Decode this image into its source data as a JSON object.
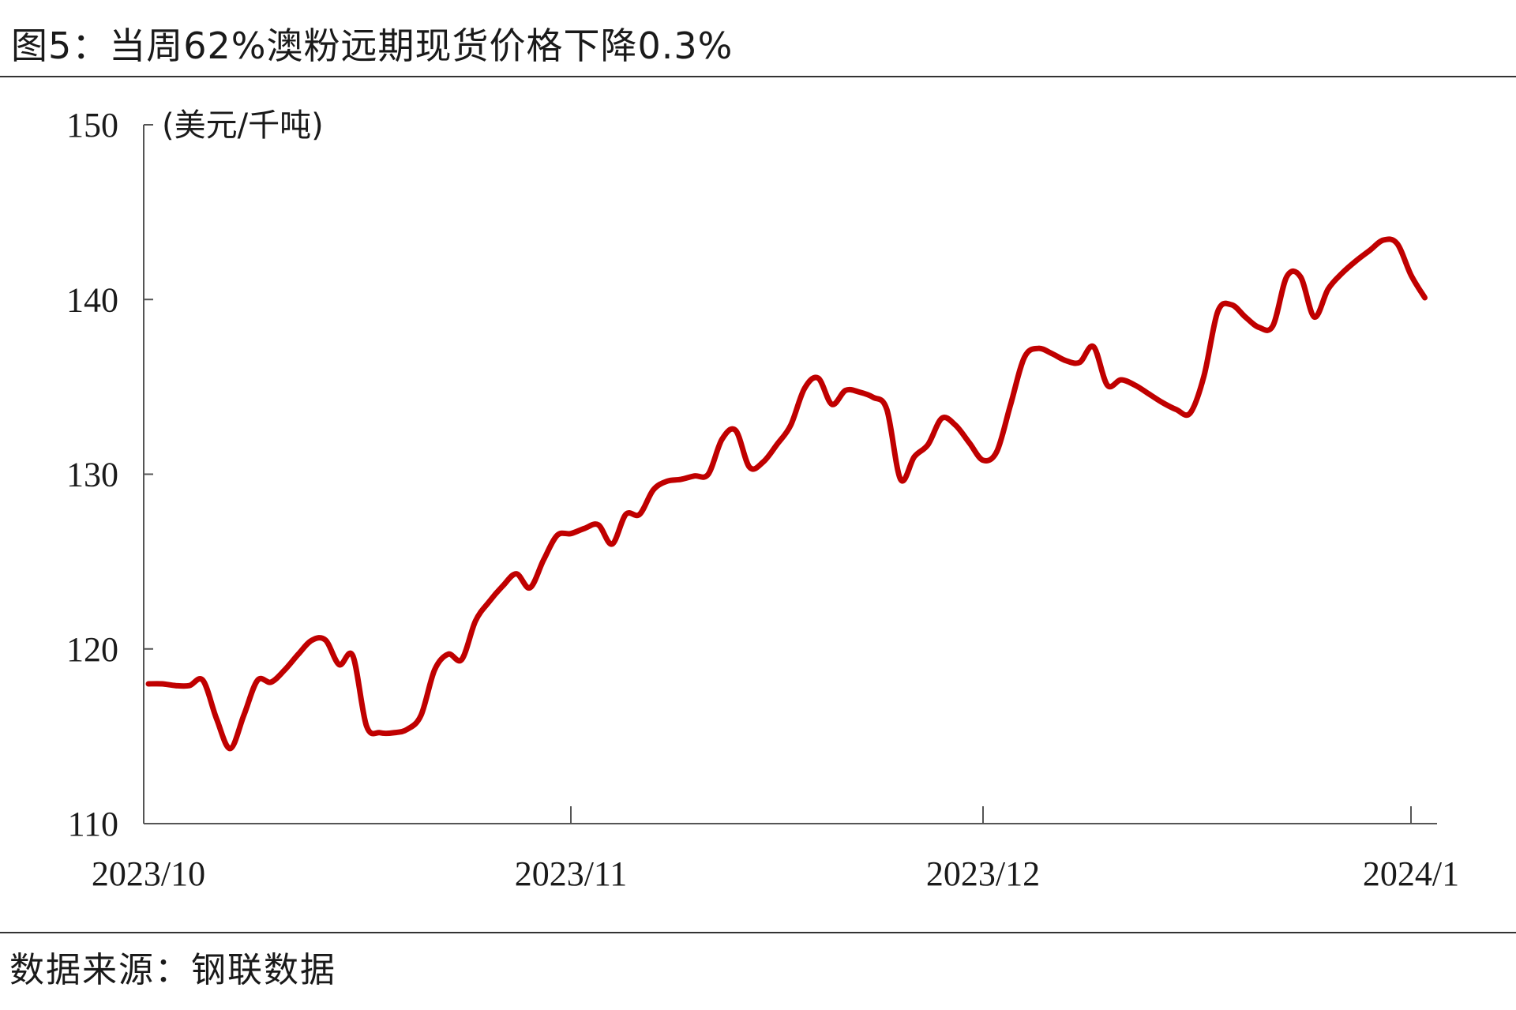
{
  "title": "图5：当周62%澳粉远期现货价格下降0.3%",
  "source": "数据来源：钢联数据",
  "chart_data": {
    "type": "line",
    "unit_label": "(美元/千吨)",
    "ylim": [
      110,
      150
    ],
    "yticks": [
      110,
      120,
      130,
      140,
      150
    ],
    "xlim": [
      "2023-10-01",
      "2024-01-02"
    ],
    "xticks": [
      {
        "date": "2023-10-01",
        "label": "2023/10"
      },
      {
        "date": "2023-11-01",
        "label": "2023/11"
      },
      {
        "date": "2023-12-01",
        "label": "2023/12"
      },
      {
        "date": "2024-01-01",
        "label": "2024/1"
      }
    ],
    "grid": false,
    "line_color": "#c00000",
    "series": [
      {
        "points": [
          [
            "2023-10-01",
            118.0
          ],
          [
            "2023-10-02",
            118.0
          ],
          [
            "2023-10-03",
            117.9
          ],
          [
            "2023-10-04",
            117.9
          ],
          [
            "2023-10-05",
            118.2
          ],
          [
            "2023-10-06",
            116.0
          ],
          [
            "2023-10-07",
            114.3
          ],
          [
            "2023-10-08",
            116.2
          ],
          [
            "2023-10-09",
            118.2
          ],
          [
            "2023-10-10",
            118.1
          ],
          [
            "2023-10-11",
            118.8
          ],
          [
            "2023-10-12",
            119.7
          ],
          [
            "2023-10-13",
            120.5
          ],
          [
            "2023-10-14",
            120.5
          ],
          [
            "2023-10-15",
            119.1
          ],
          [
            "2023-10-16",
            119.6
          ],
          [
            "2023-10-17",
            115.6
          ],
          [
            "2023-10-18",
            115.2
          ],
          [
            "2023-10-19",
            115.2
          ],
          [
            "2023-10-20",
            115.4
          ],
          [
            "2023-10-21",
            116.2
          ],
          [
            "2023-10-22",
            118.8
          ],
          [
            "2023-10-23",
            119.7
          ],
          [
            "2023-10-24",
            119.4
          ],
          [
            "2023-10-25",
            121.6
          ],
          [
            "2023-10-26",
            122.7
          ],
          [
            "2023-10-27",
            123.6
          ],
          [
            "2023-10-28",
            124.3
          ],
          [
            "2023-10-29",
            123.5
          ],
          [
            "2023-10-30",
            125.1
          ],
          [
            "2023-10-31",
            126.5
          ],
          [
            "2023-11-01",
            126.6
          ],
          [
            "2023-11-02",
            126.9
          ],
          [
            "2023-11-03",
            127.1
          ],
          [
            "2023-11-04",
            126.0
          ],
          [
            "2023-11-05",
            127.7
          ],
          [
            "2023-11-06",
            127.7
          ],
          [
            "2023-11-07",
            129.1
          ],
          [
            "2023-11-08",
            129.6
          ],
          [
            "2023-11-09",
            129.7
          ],
          [
            "2023-11-10",
            129.9
          ],
          [
            "2023-11-11",
            130.0
          ],
          [
            "2023-11-12",
            132.0
          ],
          [
            "2023-11-13",
            132.5
          ],
          [
            "2023-11-14",
            130.4
          ],
          [
            "2023-11-15",
            130.7
          ],
          [
            "2023-11-16",
            131.7
          ],
          [
            "2023-11-17",
            132.8
          ],
          [
            "2023-11-18",
            134.9
          ],
          [
            "2023-11-19",
            135.5
          ],
          [
            "2023-11-20",
            134.0
          ],
          [
            "2023-11-21",
            134.8
          ],
          [
            "2023-11-22",
            134.7
          ],
          [
            "2023-11-23",
            134.4
          ],
          [
            "2023-11-24",
            133.7
          ],
          [
            "2023-11-25",
            129.7
          ],
          [
            "2023-11-26",
            131.0
          ],
          [
            "2023-11-27",
            131.7
          ],
          [
            "2023-11-28",
            133.2
          ],
          [
            "2023-11-29",
            132.8
          ],
          [
            "2023-11-30",
            131.8
          ],
          [
            "2023-12-01",
            130.8
          ],
          [
            "2023-12-02",
            131.3
          ],
          [
            "2023-12-03",
            134.0
          ],
          [
            "2023-12-04",
            136.7
          ],
          [
            "2023-12-05",
            137.2
          ],
          [
            "2023-12-06",
            136.9
          ],
          [
            "2023-12-07",
            136.5
          ],
          [
            "2023-12-08",
            136.4
          ],
          [
            "2023-12-09",
            137.3
          ],
          [
            "2023-12-10",
            135.1
          ],
          [
            "2023-12-11",
            135.4
          ],
          [
            "2023-12-12",
            135.1
          ],
          [
            "2023-12-13",
            134.6
          ],
          [
            "2023-12-14",
            134.1
          ],
          [
            "2023-12-15",
            133.7
          ],
          [
            "2023-12-16",
            133.5
          ],
          [
            "2023-12-17",
            135.6
          ],
          [
            "2023-12-18",
            139.3
          ],
          [
            "2023-12-19",
            139.7
          ],
          [
            "2023-12-20",
            139.0
          ],
          [
            "2023-12-21",
            138.4
          ],
          [
            "2023-12-22",
            138.5
          ],
          [
            "2023-12-23",
            141.3
          ],
          [
            "2023-12-24",
            141.3
          ],
          [
            "2023-12-25",
            139.0
          ],
          [
            "2023-12-26",
            140.6
          ],
          [
            "2023-12-27",
            141.5
          ],
          [
            "2023-12-28",
            142.2
          ],
          [
            "2023-12-29",
            142.8
          ],
          [
            "2023-12-30",
            143.4
          ],
          [
            "2023-12-31",
            143.2
          ],
          [
            "2024-01-01",
            141.4
          ],
          [
            "2024-01-02",
            140.1
          ]
        ]
      }
    ]
  }
}
